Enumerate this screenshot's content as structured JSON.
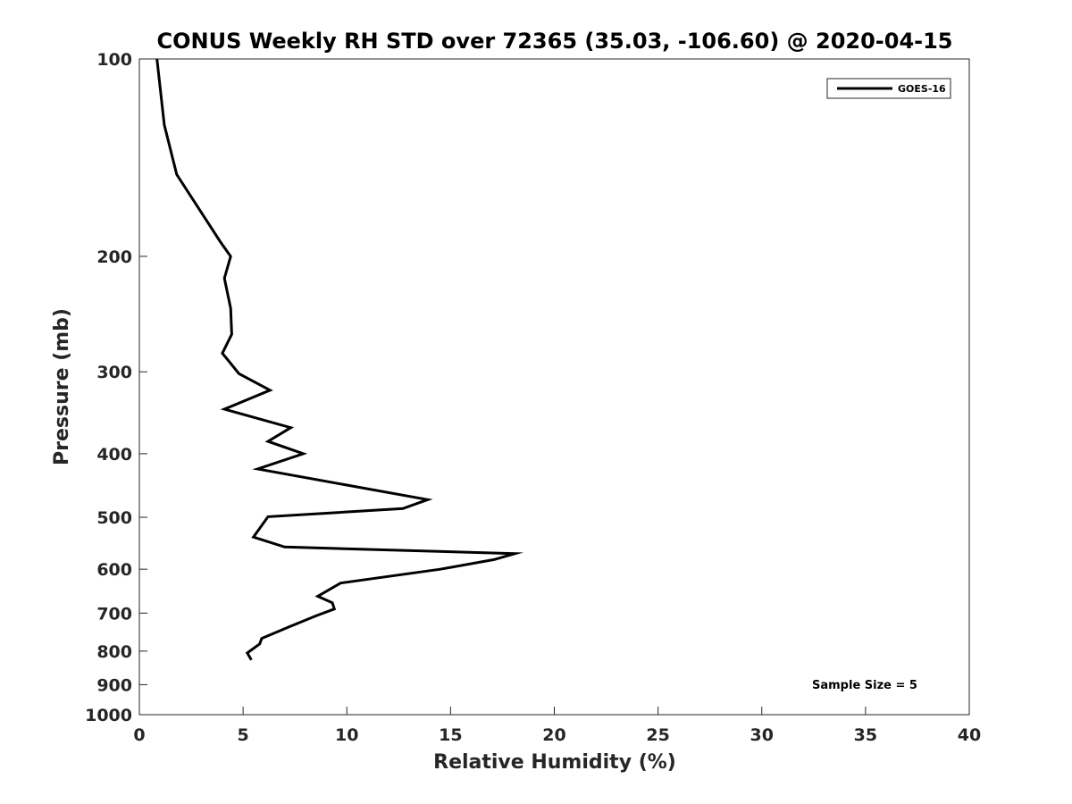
{
  "chart_data": {
    "type": "line",
    "title": "CONUS Weekly RH STD over 72365 (35.03, -106.60) @ 2020-04-15",
    "xlabel": "Relative Humidity (%)",
    "ylabel": "Pressure (mb)",
    "xlim": [
      0,
      40
    ],
    "ylim": [
      100,
      1000
    ],
    "y_scale": "log",
    "y_direction": "reversed",
    "x_ticks": [
      0,
      5,
      10,
      15,
      20,
      25,
      30,
      35,
      40
    ],
    "x_tick_labels": [
      "0",
      "5",
      "10",
      "15",
      "20",
      "25",
      "30",
      "35",
      "40"
    ],
    "y_ticks": [
      100,
      200,
      300,
      400,
      500,
      600,
      700,
      800,
      900,
      1000
    ],
    "y_tick_labels": [
      "100",
      "200",
      "300",
      "400",
      "500",
      "600",
      "700",
      "800",
      "900",
      "1000"
    ],
    "grid": false,
    "legend_position": "top-right",
    "series": [
      {
        "name": "GOES-16",
        "color": "#000000",
        "x": [
          0.85,
          1.2,
          1.8,
          3.9,
          4.4,
          4.1,
          4.4,
          4.45,
          4.0,
          4.8,
          6.3,
          4.1,
          7.3,
          6.2,
          7.9,
          5.7,
          13.9,
          12.7,
          6.2,
          5.5,
          7.0,
          18.1,
          17.1,
          14.5,
          9.7,
          8.6,
          9.3,
          9.4,
          8.5,
          7.2,
          5.9,
          5.8,
          5.2,
          5.4
        ],
        "y": [
          100,
          126,
          150,
          190,
          200,
          216,
          240,
          263,
          281,
          302,
          320,
          342,
          365,
          383,
          400,
          422,
          470,
          485,
          499,
          536,
          555,
          568,
          580,
          600,
          630,
          660,
          675,
          690,
          707,
          735,
          765,
          780,
          805,
          825
        ]
      }
    ],
    "annotation": "Sample Size = 5"
  }
}
